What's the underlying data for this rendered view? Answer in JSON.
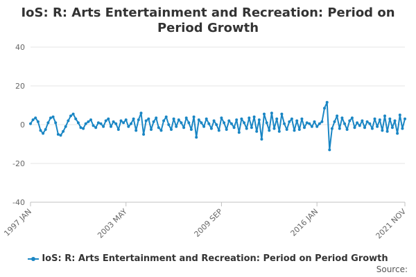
{
  "chart_data": {
    "type": "line",
    "title": "IoS: R: Arts Entertainment and Recreation: Period on Period Growth",
    "xlabel": "",
    "ylabel": "",
    "ylim": [
      -40,
      40
    ],
    "yticks": [
      40,
      20,
      0,
      -20,
      -40
    ],
    "xlim": [
      "1997-01",
      "2021-11"
    ],
    "xticks": [
      {
        "label": "1997 JAN",
        "date": "1997-01"
      },
      {
        "label": "2003 MAY",
        "date": "2003-05"
      },
      {
        "label": "2009 SEP",
        "date": "2009-09"
      },
      {
        "label": "2016 JAN",
        "date": "2016-01"
      },
      {
        "label": "2021 NOV",
        "date": "2021-11"
      }
    ],
    "grid": "horizontal",
    "legend_position": "bottom",
    "series": [
      {
        "name": "IoS: R: Arts Entertainment and Recreation: Period on Period Growth",
        "color": "#1a86c4",
        "marker": "circle",
        "points": [
          [
            "1997-01",
            0.5
          ],
          [
            "1997-03",
            2.5
          ],
          [
            "1997-05",
            3.5
          ],
          [
            "1997-07",
            1.5
          ],
          [
            "1997-09",
            -3.0
          ],
          [
            "1997-11",
            -4.5
          ],
          [
            "1998-01",
            -2.5
          ],
          [
            "1998-03",
            1.0
          ],
          [
            "1998-05",
            3.5
          ],
          [
            "1998-07",
            4.0
          ],
          [
            "1998-09",
            1.0
          ],
          [
            "1998-11",
            -5.0
          ],
          [
            "1999-01",
            -5.5
          ],
          [
            "1999-03",
            -3.5
          ],
          [
            "1999-05",
            -1.0
          ],
          [
            "1999-07",
            2.0
          ],
          [
            "1999-09",
            4.5
          ],
          [
            "1999-11",
            5.5
          ],
          [
            "2000-01",
            3.0
          ],
          [
            "2000-03",
            1.0
          ],
          [
            "2000-05",
            -1.5
          ],
          [
            "2000-07",
            -2.0
          ],
          [
            "2000-09",
            0.5
          ],
          [
            "2000-11",
            1.5
          ],
          [
            "2001-01",
            2.5
          ],
          [
            "2001-03",
            -0.5
          ],
          [
            "2001-05",
            -1.5
          ],
          [
            "2001-07",
            1.0
          ],
          [
            "2001-09",
            0.5
          ],
          [
            "2001-11",
            -1.0
          ],
          [
            "2002-01",
            2.0
          ],
          [
            "2002-03",
            3.0
          ],
          [
            "2002-05",
            -1.0
          ],
          [
            "2002-07",
            1.5
          ],
          [
            "2002-09",
            0.5
          ],
          [
            "2002-11",
            -2.5
          ],
          [
            "2003-01",
            2.0
          ],
          [
            "2003-03",
            1.0
          ],
          [
            "2003-05",
            2.5
          ],
          [
            "2003-07",
            -1.0
          ],
          [
            "2003-09",
            0.5
          ],
          [
            "2003-11",
            3.0
          ],
          [
            "2004-01",
            -3.0
          ],
          [
            "2004-03",
            2.5
          ],
          [
            "2004-05",
            6.0
          ],
          [
            "2004-07",
            -5.0
          ],
          [
            "2004-09",
            2.0
          ],
          [
            "2004-11",
            3.0
          ],
          [
            "2005-01",
            -2.5
          ],
          [
            "2005-03",
            1.5
          ],
          [
            "2005-05",
            3.5
          ],
          [
            "2005-07",
            -1.5
          ],
          [
            "2005-09",
            -3.0
          ],
          [
            "2005-11",
            2.0
          ],
          [
            "2006-01",
            4.0
          ],
          [
            "2006-03",
            0.0
          ],
          [
            "2006-05",
            -2.5
          ],
          [
            "2006-07",
            3.0
          ],
          [
            "2006-09",
            -1.0
          ],
          [
            "2006-11",
            2.5
          ],
          [
            "2007-01",
            1.0
          ],
          [
            "2007-03",
            -1.5
          ],
          [
            "2007-05",
            3.5
          ],
          [
            "2007-07",
            1.0
          ],
          [
            "2007-09",
            -2.5
          ],
          [
            "2007-11",
            4.0
          ],
          [
            "2008-01",
            -6.5
          ],
          [
            "2008-03",
            2.5
          ],
          [
            "2008-05",
            1.0
          ],
          [
            "2008-07",
            -1.0
          ],
          [
            "2008-09",
            3.0
          ],
          [
            "2008-11",
            0.5
          ],
          [
            "2009-01",
            -2.0
          ],
          [
            "2009-03",
            2.0
          ],
          [
            "2009-05",
            0.0
          ],
          [
            "2009-07",
            -3.0
          ],
          [
            "2009-09",
            3.5
          ],
          [
            "2009-11",
            1.0
          ],
          [
            "2010-01",
            -2.5
          ],
          [
            "2010-03",
            2.0
          ],
          [
            "2010-05",
            0.5
          ],
          [
            "2010-07",
            -1.5
          ],
          [
            "2010-09",
            2.5
          ],
          [
            "2010-11",
            -4.0
          ],
          [
            "2011-01",
            3.0
          ],
          [
            "2011-03",
            1.0
          ],
          [
            "2011-05",
            -2.0
          ],
          [
            "2011-07",
            3.5
          ],
          [
            "2011-09",
            -1.5
          ],
          [
            "2011-11",
            4.0
          ],
          [
            "2012-01",
            -3.5
          ],
          [
            "2012-03",
            2.5
          ],
          [
            "2012-05",
            -7.5
          ],
          [
            "2012-07",
            5.5
          ],
          [
            "2012-09",
            1.0
          ],
          [
            "2012-11",
            -3.0
          ],
          [
            "2013-01",
            6.0
          ],
          [
            "2013-03",
            -2.0
          ],
          [
            "2013-05",
            3.0
          ],
          [
            "2013-07",
            -3.5
          ],
          [
            "2013-09",
            5.5
          ],
          [
            "2013-11",
            0.5
          ],
          [
            "2014-01",
            -2.5
          ],
          [
            "2014-03",
            1.5
          ],
          [
            "2014-05",
            3.0
          ],
          [
            "2014-07",
            -3.0
          ],
          [
            "2014-09",
            2.0
          ],
          [
            "2014-11",
            -2.5
          ],
          [
            "2015-01",
            3.0
          ],
          [
            "2015-03",
            -1.5
          ],
          [
            "2015-05",
            1.0
          ],
          [
            "2015-07",
            0.5
          ],
          [
            "2015-09",
            -1.0
          ],
          [
            "2015-11",
            1.5
          ],
          [
            "2016-01",
            -1.0
          ],
          [
            "2016-03",
            0.5
          ],
          [
            "2016-05",
            1.5
          ],
          [
            "2016-07",
            8.5
          ],
          [
            "2016-09",
            11.5
          ],
          [
            "2016-11",
            -13.0
          ],
          [
            "2017-01",
            -2.0
          ],
          [
            "2017-03",
            1.5
          ],
          [
            "2017-05",
            4.5
          ],
          [
            "2017-07",
            -2.0
          ],
          [
            "2017-09",
            3.5
          ],
          [
            "2017-11",
            0.5
          ],
          [
            "2018-01",
            -2.5
          ],
          [
            "2018-03",
            2.0
          ],
          [
            "2018-05",
            3.5
          ],
          [
            "2018-07",
            -1.5
          ],
          [
            "2018-09",
            1.0
          ],
          [
            "2018-11",
            -0.5
          ],
          [
            "2019-01",
            2.0
          ],
          [
            "2019-03",
            -1.5
          ],
          [
            "2019-05",
            1.5
          ],
          [
            "2019-07",
            0.5
          ],
          [
            "2019-09",
            -2.0
          ],
          [
            "2019-11",
            3.0
          ],
          [
            "2020-01",
            -1.0
          ],
          [
            "2020-03",
            2.5
          ],
          [
            "2020-05",
            -3.0
          ],
          [
            "2020-07",
            4.5
          ],
          [
            "2020-09",
            -3.5
          ],
          [
            "2020-11",
            3.0
          ],
          [
            "2021-01",
            -1.5
          ],
          [
            "2021-03",
            2.0
          ],
          [
            "2021-05",
            -4.5
          ],
          [
            "2021-07",
            5.0
          ],
          [
            "2021-09",
            -2.0
          ],
          [
            "2021-11",
            3.0
          ]
        ]
      }
    ]
  },
  "source_label": "Source:"
}
